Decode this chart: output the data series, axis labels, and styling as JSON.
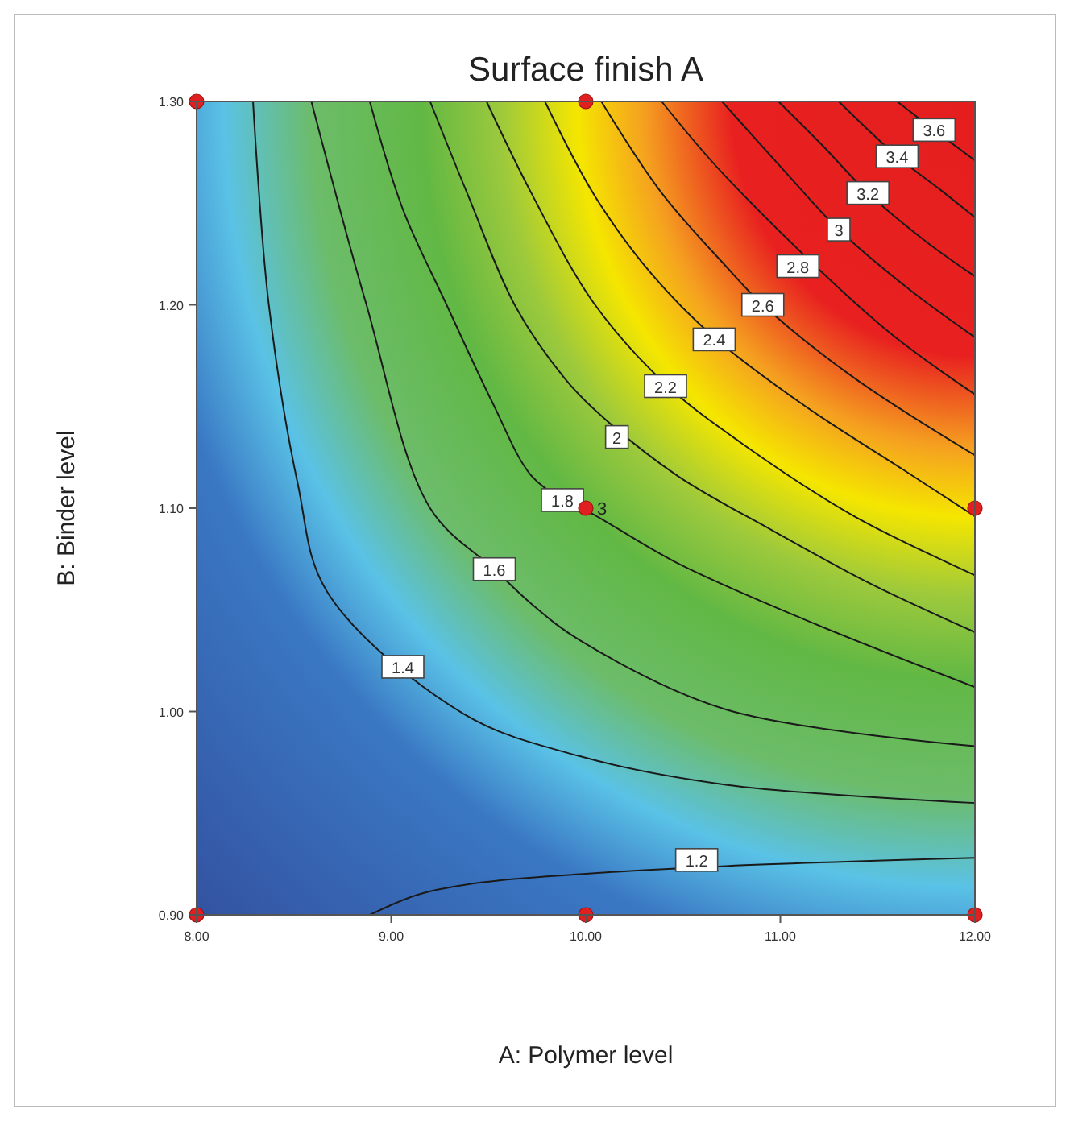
{
  "chart_data": {
    "type": "line",
    "title": "Surface finish A",
    "xlabel": "A: Polymer level",
    "ylabel": "B: Binder level",
    "xlim": [
      8,
      12
    ],
    "ylim": [
      0.9,
      1.3
    ],
    "xticks": [
      {
        "value": 8,
        "label": "8.00"
      },
      {
        "value": 9,
        "label": "9.00"
      },
      {
        "value": 10,
        "label": "10.00"
      },
      {
        "value": 11,
        "label": "11.00"
      },
      {
        "value": 12,
        "label": "12.00"
      }
    ],
    "yticks": [
      {
        "value": 0.9,
        "label": "0.90"
      },
      {
        "value": 1.0,
        "label": "1.00"
      },
      {
        "value": 1.1,
        "label": "1.10"
      },
      {
        "value": 1.2,
        "label": "1.20"
      },
      {
        "value": 1.3,
        "label": "1.30"
      }
    ],
    "grid": false,
    "marker": "none",
    "line_style": "solid",
    "series": [
      {
        "color": "#1a1a1a",
        "x": [
          8.89,
          9.14,
          9.47,
          9.97,
          10.72,
          12
        ],
        "values": [
          0.9,
          0.91,
          0.916,
          0.92,
          0.924,
          0.928
        ]
      },
      {
        "color": "#1a1a1a",
        "x": [
          8.29,
          8.37,
          8.52,
          8.67,
          9.37,
          9.97,
          10.72,
          12
        ],
        "values": [
          1.3,
          1.201,
          1.112,
          1.059,
          0.999,
          0.978,
          0.964,
          0.955
        ]
      },
      {
        "color": "#1a1a1a",
        "x": [
          8.59,
          8.87,
          9.2,
          9.53,
          9.72,
          9.97,
          10.72,
          12
        ],
        "values": [
          1.3,
          1.201,
          1.1,
          1.07,
          1.053,
          1.035,
          1.001,
          0.983
        ]
      },
      {
        "color": "#1a1a1a",
        "x": [
          8.89,
          9.06,
          9.28,
          9.52,
          9.72,
          9.89,
          10.02,
          10.47,
          11.13,
          12
        ],
        "values": [
          1.3,
          1.247,
          1.201,
          1.152,
          1.116,
          1.104,
          1.098,
          1.073,
          1.045,
          1.012
        ]
      },
      {
        "color": "#1a1a1a",
        "x": [
          9.2,
          9.39,
          9.64,
          9.89,
          10.05,
          10.47,
          10.96,
          11.46,
          12
        ],
        "values": [
          1.3,
          1.255,
          1.199,
          1.164,
          1.148,
          1.116,
          1.089,
          1.063,
          1.039
        ]
      },
      {
        "color": "#1a1a1a",
        "x": [
          9.49,
          9.72,
          10.04,
          10.41,
          10.8,
          11.38,
          12
        ],
        "values": [
          1.3,
          1.255,
          1.201,
          1.161,
          1.132,
          1.096,
          1.067
        ]
      },
      {
        "color": "#1a1a1a",
        "x": [
          9.79,
          10.05,
          10.34,
          10.66,
          11.13,
          11.63,
          12
        ],
        "values": [
          1.3,
          1.253,
          1.215,
          1.184,
          1.15,
          1.119,
          1.096
        ]
      },
      {
        "color": "#1a1a1a",
        "x": [
          10.08,
          10.39,
          10.72,
          10.91,
          11.38,
          12
        ],
        "values": [
          1.3,
          1.255,
          1.219,
          1.2,
          1.164,
          1.126
        ]
      },
      {
        "color": "#1a1a1a",
        "x": [
          10.39,
          10.72,
          11.54,
          12
        ],
        "values": [
          1.3,
          1.263,
          1.188,
          1.156
        ]
      },
      {
        "color": "#1a1a1a",
        "x": [
          10.7,
          11.01,
          11.3,
          11.67,
          12
        ],
        "values": [
          1.3,
          1.267,
          1.237,
          1.207,
          1.184
        ]
      },
      {
        "color": "#1a1a1a",
        "x": [
          10.99,
          11.21,
          11.45,
          11.75,
          12
        ],
        "values": [
          1.3,
          1.279,
          1.255,
          1.231,
          1.214
        ]
      },
      {
        "color": "#1a1a1a",
        "x": [
          11.3,
          11.6,
          11.83,
          12
        ],
        "values": [
          1.3,
          1.273,
          1.256,
          1.243
        ]
      },
      {
        "color": "#1a1a1a",
        "x": [
          11.6,
          11.79,
          12
        ],
        "values": [
          1.3,
          1.286,
          1.271
        ]
      },
      {
        "type": "scatter",
        "color": "#e02020",
        "marker": "circle",
        "x": [
          8,
          10,
          8,
          10,
          12,
          10,
          12
        ],
        "values": [
          1.3,
          1.3,
          0.9,
          0.9,
          0.9,
          1.1,
          1.1
        ]
      }
    ],
    "annotations": [
      {
        "text": "3",
        "x": 10,
        "y": 1.1
      },
      {
        "text": "1.2",
        "x": 10.57,
        "y": 0.927
      },
      {
        "text": "1.4",
        "x": 9.06,
        "y": 1.022
      },
      {
        "text": "1.6",
        "x": 9.53,
        "y": 1.07
      },
      {
        "text": "1.8",
        "x": 9.88,
        "y": 1.104
      },
      {
        "text": "2",
        "x": 10.16,
        "y": 1.135
      },
      {
        "text": "2.2",
        "x": 10.41,
        "y": 1.16
      },
      {
        "text": "2.4",
        "x": 10.66,
        "y": 1.183
      },
      {
        "text": "2.6",
        "x": 10.91,
        "y": 1.2
      },
      {
        "text": "2.8",
        "x": 11.09,
        "y": 1.219
      },
      {
        "text": "3",
        "x": 11.3,
        "y": 1.237
      },
      {
        "text": "3.2",
        "x": 11.45,
        "y": 1.255
      },
      {
        "text": "3.4",
        "x": 11.6,
        "y": 1.273
      },
      {
        "text": "3.6",
        "x": 11.79,
        "y": 1.286
      }
    ]
  }
}
